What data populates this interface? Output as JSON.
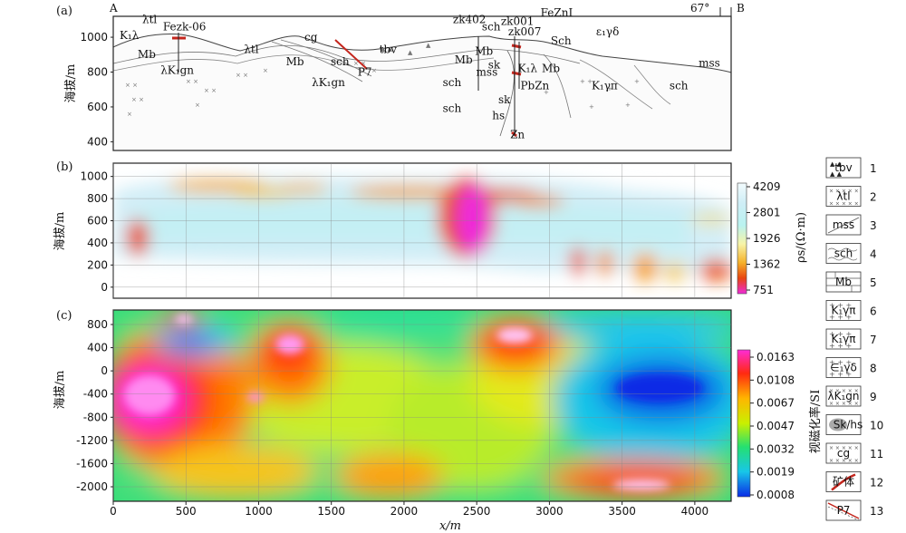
{
  "figure": {
    "panel_labels": [
      "(a)",
      "(b)",
      "(c)"
    ],
    "xlabel": "x/m",
    "x_ticks": [
      0,
      500,
      1000,
      1500,
      2000,
      2500,
      3000,
      3500,
      4000
    ],
    "xlim": [
      0,
      4250
    ]
  },
  "chart_data": [
    {
      "type": "other",
      "panel": "(a)",
      "ylabel": "海拔/m",
      "y_ticks": [
        400,
        600,
        800,
        1000
      ],
      "ylim": [
        350,
        1120
      ],
      "section_ends": [
        "A",
        "B"
      ],
      "dip_label": "67°",
      "geology_labels": [
        {
          "text": "λtl",
          "x": 250,
          "y": 1080
        },
        {
          "text": "Fezk-06",
          "x": 490,
          "y": 1040
        },
        {
          "text": "K₁λ",
          "x": 110,
          "y": 990
        },
        {
          "text": "Mb",
          "x": 230,
          "y": 880
        },
        {
          "text": "λK₁gn",
          "x": 440,
          "y": 790
        },
        {
          "text": "λtl",
          "x": 950,
          "y": 910
        },
        {
          "text": "cg",
          "x": 1360,
          "y": 980
        },
        {
          "text": "Mb",
          "x": 1250,
          "y": 840
        },
        {
          "text": "sch",
          "x": 1560,
          "y": 840
        },
        {
          "text": "λK₁gn",
          "x": 1480,
          "y": 720
        },
        {
          "text": "P7",
          "x": 1730,
          "y": 780
        },
        {
          "text": "tbv",
          "x": 1890,
          "y": 910
        },
        {
          "text": "zk402",
          "x": 2450,
          "y": 1080
        },
        {
          "text": "sch",
          "x": 2600,
          "y": 1040
        },
        {
          "text": "zk001",
          "x": 2780,
          "y": 1070
        },
        {
          "text": "zk007",
          "x": 2830,
          "y": 1010
        },
        {
          "text": "FeZnI",
          "x": 3050,
          "y": 1120
        },
        {
          "text": "Sch",
          "x": 3080,
          "y": 960
        },
        {
          "text": "ε₁γδ",
          "x": 3400,
          "y": 1010
        },
        {
          "text": "Mb",
          "x": 2410,
          "y": 850
        },
        {
          "text": "Mb",
          "x": 2550,
          "y": 900
        },
        {
          "text": "sk",
          "x": 2620,
          "y": 820
        },
        {
          "text": "mss",
          "x": 2570,
          "y": 780
        },
        {
          "text": "K₁λ",
          "x": 2850,
          "y": 800
        },
        {
          "text": "Mb",
          "x": 3010,
          "y": 800
        },
        {
          "text": "sch",
          "x": 2330,
          "y": 720
        },
        {
          "text": "PbZn",
          "x": 2900,
          "y": 700
        },
        {
          "text": "K₁γπ",
          "x": 3380,
          "y": 700
        },
        {
          "text": "sch",
          "x": 2330,
          "y": 570
        },
        {
          "text": "sk",
          "x": 2690,
          "y": 620
        },
        {
          "text": "hs",
          "x": 2650,
          "y": 530
        },
        {
          "text": "Zn",
          "x": 2780,
          "y": 420
        },
        {
          "text": "mss",
          "x": 4100,
          "y": 830
        },
        {
          "text": "sch",
          "x": 3890,
          "y": 700
        }
      ]
    },
    {
      "type": "heatmap",
      "panel": "(b)",
      "ylabel": "海拔/m",
      "y_ticks": [
        0,
        200,
        400,
        600,
        800,
        1000
      ],
      "ylim": [
        -100,
        1120
      ],
      "colorbar_label": "ρs/(Ω·m)",
      "colorbar_ticks": [
        "4209",
        "2801",
        "1926",
        "1362",
        "751"
      ]
    },
    {
      "type": "heatmap",
      "panel": "(c)",
      "ylabel": "海拔/m",
      "y_ticks": [
        800,
        400,
        0,
        -400,
        -800,
        -1200,
        -1600,
        -2000
      ],
      "ylim": [
        -2250,
        1050
      ],
      "colorbar_label": "视磁化率/SI",
      "colorbar_ticks": [
        "0.0163",
        "0.0108",
        "0.0067",
        "0.0047",
        "0.0032",
        "0.0019",
        "0.0008"
      ]
    }
  ],
  "legend": [
    {
      "num": "1",
      "swatch": "tbv"
    },
    {
      "num": "2",
      "swatch": "λtl"
    },
    {
      "num": "3",
      "swatch": "mss"
    },
    {
      "num": "4",
      "swatch": "sch"
    },
    {
      "num": "5",
      "swatch": "Mb"
    },
    {
      "num": "6",
      "swatch": "K₁γπ"
    },
    {
      "num": "7",
      "swatch": "K₁γπ"
    },
    {
      "num": "8",
      "swatch": "∈₁γδ"
    },
    {
      "num": "9",
      "swatch": "λK₁gn"
    },
    {
      "num": "10",
      "swatch": "Sk/hs"
    },
    {
      "num": "11",
      "swatch": "cg"
    },
    {
      "num": "12",
      "swatch": "矿体"
    },
    {
      "num": "13",
      "swatch": "P7"
    }
  ]
}
